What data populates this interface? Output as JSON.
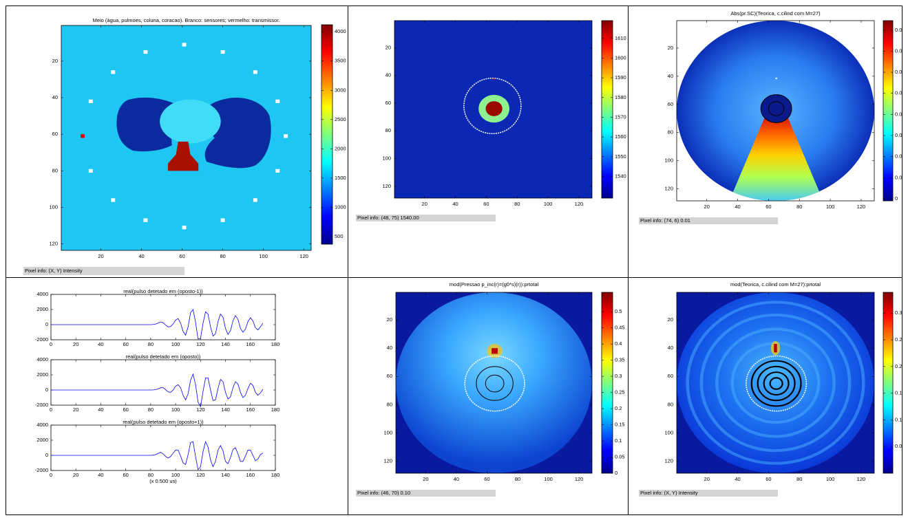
{
  "chart_data": [
    {
      "type": "image",
      "title": "Meio (àgua, pulmoes, coluna, coracao). Branco: sensores; vermelho: transmissor.",
      "xlim": [
        0.5,
        123.5
      ],
      "xticks": [
        20,
        40,
        60,
        80,
        100,
        120
      ],
      "ylim": [
        0.5,
        123.5
      ],
      "yticks": [
        20,
        40,
        60,
        80,
        100,
        120
      ],
      "y_reversed": true,
      "colormap": "jet",
      "clim": [
        370,
        4120
      ],
      "cticks": [
        500,
        1000,
        1500,
        2000,
        2500,
        3000,
        3500,
        4000
      ],
      "pixel_info": "Pixel info: (X, Y)  Intensity"
    },
    {
      "type": "image",
      "xlim": [
        0.5,
        128.5
      ],
      "xticks": [
        20,
        40,
        60,
        80,
        100,
        120
      ],
      "ylim": [
        0.5,
        128.5
      ],
      "yticks": [
        20,
        40,
        60,
        80,
        100,
        120
      ],
      "y_reversed": true,
      "colormap": "jet",
      "clim": [
        1529,
        1619
      ],
      "cticks": [
        1540,
        1550,
        1560,
        1570,
        1580,
        1590,
        1600,
        1610
      ],
      "pixel_info": "Pixel info: (48, 75)  1540.00"
    },
    {
      "type": "image",
      "title": "Abs(pr.SC)(Teorica, c.cilind com M=27)",
      "xlim": [
        0.5,
        128.5
      ],
      "xticks": [
        20,
        40,
        60,
        80,
        100,
        120
      ],
      "ylim": [
        0.5,
        128.5
      ],
      "yticks": [
        20,
        40,
        60,
        80,
        100,
        120
      ],
      "y_reversed": true,
      "colormap": "jet",
      "clim": [
        -0.001,
        0.0845
      ],
      "cticks": [
        0,
        0.01,
        0.02,
        0.03,
        0.04,
        0.05,
        0.06,
        0.07,
        0.08
      ],
      "pixel_info": "Pixel info: (74, 6)  0.01"
    },
    {
      "type": "line",
      "color": "#0000ff",
      "x": [
        0,
        20,
        40,
        60,
        80,
        82,
        84,
        86,
        88,
        90,
        92,
        94,
        96,
        98,
        100,
        102,
        104,
        106,
        108,
        110,
        112,
        114,
        116,
        118,
        120,
        122,
        124,
        126,
        128,
        130,
        132,
        134,
        136,
        138,
        140,
        142,
        144,
        146,
        148,
        150,
        152,
        154,
        156,
        158,
        160,
        162,
        164,
        166,
        168,
        170
      ],
      "xlim": [
        0,
        180
      ],
      "xticks": [
        0,
        20,
        40,
        60,
        80,
        100,
        120,
        140,
        160,
        180
      ],
      "ylim": [
        -2000,
        4000
      ],
      "yticks": [
        -2000,
        0,
        2000,
        4000
      ],
      "xlabel": "(x 0.500 us)",
      "subplots": [
        {
          "title": "real(pulso detetado em (oposto-1))",
          "values": [
            0,
            0,
            0,
            0,
            0,
            20,
            80,
            200,
            350,
            250,
            -50,
            -300,
            -250,
            100,
            600,
            800,
            200,
            -900,
            -1400,
            -300,
            1600,
            2000,
            300,
            -1900,
            -1800,
            200,
            1700,
            1400,
            -300,
            -1500,
            -1200,
            400,
            1400,
            1000,
            -500,
            -1300,
            -800,
            500,
            1200,
            700,
            -500,
            -1000,
            -600,
            400,
            900,
            500,
            -400,
            -700,
            -300,
            200
          ]
        },
        {
          "title": "real(pulso detetado em (oposto))",
          "values": [
            0,
            0,
            0,
            0,
            0,
            10,
            60,
            150,
            300,
            300,
            50,
            -250,
            -300,
            0,
            500,
            700,
            300,
            -700,
            -1300,
            -500,
            1300,
            2100,
            700,
            -1600,
            -2200,
            -200,
            1600,
            1600,
            0,
            -1400,
            -1300,
            200,
            1400,
            1100,
            -300,
            -1200,
            -900,
            300,
            1100,
            800,
            -300,
            -1000,
            -700,
            200,
            900,
            600,
            -300,
            -700,
            -400,
            100
          ]
        },
        {
          "title": "real(pulso detetado em (oposto+1))",
          "values": [
            0,
            0,
            0,
            0,
            0,
            30,
            100,
            250,
            400,
            200,
            -150,
            -350,
            -150,
            300,
            700,
            700,
            -100,
            -1000,
            -1200,
            100,
            1700,
            1800,
            -200,
            -1900,
            -1500,
            500,
            1800,
            1100,
            -600,
            -1500,
            -800,
            700,
            1300,
            600,
            -800,
            -1100,
            -300,
            800,
            1000,
            200,
            -800,
            -800,
            -100,
            700,
            700,
            0,
            -700,
            -500,
            100,
            300
          ]
        }
      ]
    },
    {
      "type": "image",
      "title": "mod(Pressao p_inc(r)=(g0*s)(r)):prtotal",
      "xlim": [
        0.5,
        128.5
      ],
      "xticks": [
        20,
        40,
        60,
        80,
        100,
        120
      ],
      "ylim": [
        0.5,
        128.5
      ],
      "yticks": [
        20,
        40,
        60,
        80,
        100,
        120
      ],
      "y_reversed": true,
      "colormap": "jet",
      "clim": [
        0,
        0.56
      ],
      "cticks": [
        0,
        0.05,
        0.1,
        0.15,
        0.2,
        0.25,
        0.3,
        0.35,
        0.4,
        0.45,
        0.5
      ],
      "pixel_info": "Pixel info: (46, 70)  0.10"
    },
    {
      "type": "image",
      "title": "mod(Teorica, c.cilind com M=27):prtotal",
      "xlim": [
        0.5,
        128.5
      ],
      "xticks": [
        20,
        40,
        60,
        80,
        100,
        120
      ],
      "ylim": [
        0.5,
        128.5
      ],
      "yticks": [
        20,
        40,
        60,
        80,
        100,
        120
      ],
      "y_reversed": true,
      "colormap": "jet",
      "clim": [
        0,
        0.339
      ],
      "cticks": [
        0.05,
        0.1,
        0.15,
        0.2,
        0.25,
        0.3
      ],
      "pixel_info": "Pixel info: (X, Y)  Intensity"
    }
  ]
}
